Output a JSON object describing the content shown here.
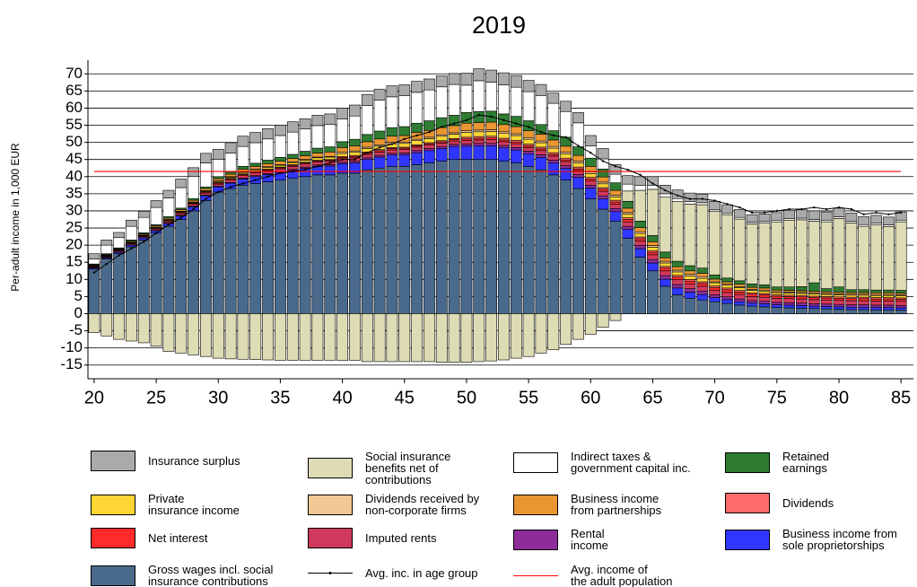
{
  "chart_data": {
    "type": "bar",
    "stacked": true,
    "title": "2019",
    "y_label": "Per-adult income in 1,000 EUR",
    "x": [
      20,
      21,
      22,
      23,
      24,
      25,
      26,
      27,
      28,
      29,
      30,
      31,
      32,
      33,
      34,
      35,
      36,
      37,
      38,
      39,
      40,
      41,
      42,
      43,
      44,
      45,
      46,
      47,
      48,
      49,
      50,
      51,
      52,
      53,
      54,
      55,
      56,
      57,
      58,
      59,
      60,
      61,
      62,
      63,
      64,
      65,
      66,
      67,
      68,
      69,
      70,
      71,
      72,
      73,
      74,
      75,
      76,
      77,
      78,
      79,
      80,
      81,
      82,
      83,
      84,
      85
    ],
    "xlim": [
      19.5,
      86
    ],
    "xticks": [
      20,
      25,
      30,
      35,
      40,
      45,
      50,
      55,
      60,
      65,
      70,
      75,
      80,
      85
    ],
    "ylim": [
      -19,
      74
    ],
    "yticks": [
      -15,
      -10,
      -5,
      0,
      5,
      10,
      15,
      20,
      25,
      30,
      35,
      40,
      45,
      50,
      55,
      60,
      65,
      70
    ],
    "grid": true,
    "series": [
      {
        "name": "Gross wages incl. social\ninsurance contributions",
        "color": "#4a6a8c",
        "values": [
          13,
          16,
          17.5,
          19.5,
          21.5,
          23.5,
          25.5,
          27.5,
          30,
          33,
          35.5,
          36.5,
          37.5,
          38,
          38.5,
          39,
          39.5,
          40,
          40.5,
          40.5,
          41,
          41,
          42,
          42.5,
          43,
          43,
          43.5,
          44,
          44.5,
          45,
          45,
          45,
          45,
          44.5,
          44,
          43,
          42,
          40.5,
          39,
          36.5,
          33.5,
          30.5,
          27,
          22,
          16.5,
          12.5,
          8,
          5.5,
          4.5,
          4,
          3.5,
          3,
          2.5,
          2.2,
          2,
          1.8,
          1.7,
          1.6,
          1.5,
          1.4,
          1.3,
          1.2,
          1.2,
          1.1,
          1.1,
          1
        ]
      },
      {
        "name": "Business income from\nsole proprietorships",
        "color": "#2f36ff",
        "values": [
          0.3,
          0.3,
          0.4,
          0.5,
          0.6,
          0.7,
          0.8,
          1,
          1.2,
          1.4,
          1.5,
          1.6,
          1.8,
          2,
          2.1,
          2.2,
          2.3,
          2.4,
          2.5,
          2.6,
          2.8,
          3,
          3,
          3.2,
          3.3,
          3.4,
          3.5,
          3.6,
          3.7,
          3.8,
          3.9,
          4,
          4,
          3.9,
          3.8,
          3.7,
          3.6,
          3.5,
          3.4,
          3.3,
          3.2,
          3,
          2.8,
          2.6,
          2.5,
          2.3,
          2.1,
          2,
          1.8,
          1.6,
          1.2,
          1.1,
          1,
          0.9,
          0.9,
          0.8,
          0.8,
          0.8,
          0.7,
          0.7,
          0.7,
          0.7,
          0.7,
          0.7,
          0.7,
          0.7
        ]
      },
      {
        "name": "Rental\nincome",
        "color": "#8e2d9a",
        "values": [
          0.1,
          0.1,
          0.1,
          0.1,
          0.1,
          0.1,
          0.1,
          0.2,
          0.2,
          0.2,
          0.2,
          0.2,
          0.3,
          0.3,
          0.3,
          0.3,
          0.3,
          0.4,
          0.4,
          0.4,
          0.4,
          0.5,
          0.5,
          0.5,
          0.5,
          0.5,
          0.6,
          0.6,
          0.6,
          0.6,
          0.6,
          0.7,
          0.7,
          0.7,
          0.7,
          0.7,
          0.8,
          0.8,
          0.8,
          0.8,
          0.8,
          0.9,
          0.9,
          0.9,
          0.9,
          1,
          1,
          1,
          1,
          1,
          0.8,
          0.8,
          0.8,
          0.7,
          0.7,
          0.7,
          0.7,
          0.7,
          0.7,
          0.7,
          0.7,
          0.7,
          0.7,
          0.7,
          0.7,
          0.7
        ]
      },
      {
        "name": "Imputed rents",
        "color": "#d1395c",
        "values": [
          0.2,
          0.2,
          0.3,
          0.3,
          0.3,
          0.4,
          0.4,
          0.5,
          0.5,
          0.6,
          0.6,
          0.7,
          0.7,
          0.8,
          0.8,
          0.8,
          0.9,
          0.9,
          0.9,
          1,
          1,
          1,
          1,
          1,
          1,
          1,
          1,
          1,
          1,
          1,
          1,
          1,
          1.1,
          1.1,
          1.1,
          1.1,
          1.2,
          1.2,
          1.2,
          1.2,
          1.2,
          1.3,
          1.3,
          1.3,
          1.3,
          1.4,
          1.4,
          1.4,
          1.4,
          1.4,
          1.3,
          1.3,
          1.3,
          1.2,
          1.2,
          1.2,
          1.2,
          1.2,
          1.2,
          1.2,
          1.2,
          1.2,
          1.2,
          1.2,
          1.2,
          1.2
        ]
      },
      {
        "name": "Net interest",
        "color": "#ff2b2b",
        "values": [
          0.2,
          0.2,
          0.2,
          0.2,
          0.2,
          0.2,
          0.3,
          0.3,
          0.3,
          0.3,
          0.3,
          0.3,
          0.3,
          0.3,
          0.3,
          0.3,
          0.3,
          0.3,
          0.3,
          0.3,
          0.4,
          0.4,
          0.4,
          0.4,
          0.4,
          0.4,
          0.4,
          0.4,
          0.4,
          0.4,
          0.5,
          0.5,
          0.5,
          0.5,
          0.5,
          0.5,
          0.5,
          0.5,
          0.5,
          0.5,
          0.6,
          0.6,
          0.6,
          0.7,
          0.7,
          0.7,
          0.8,
          0.8,
          0.8,
          0.8,
          0.8,
          0.8,
          0.7,
          0.7,
          0.7,
          0.6,
          0.6,
          0.6,
          0.6,
          0.6,
          0.6,
          0.6,
          0.6,
          0.6,
          0.6,
          0.6
        ]
      },
      {
        "name": "Dividends",
        "color": "#ff6b6b",
        "values": [
          0.1,
          0.1,
          0.1,
          0.1,
          0.1,
          0.1,
          0.1,
          0.1,
          0.1,
          0.1,
          0.2,
          0.2,
          0.2,
          0.2,
          0.2,
          0.2,
          0.2,
          0.2,
          0.2,
          0.2,
          0.3,
          0.3,
          0.3,
          0.3,
          0.3,
          0.3,
          0.3,
          0.3,
          0.3,
          0.3,
          0.5,
          0.5,
          0.5,
          0.5,
          0.5,
          0.5,
          0.5,
          0.5,
          0.5,
          0.5,
          0.5,
          0.5,
          0.5,
          0.5,
          0.5,
          0.5,
          0.5,
          0.5,
          0.5,
          0.5,
          0.5,
          0.5,
          0.5,
          0.4,
          0.4,
          0.4,
          0.4,
          0.4,
          0.4,
          0.4,
          0.4,
          0.4,
          0.4,
          0.4,
          0.4,
          0.4
        ]
      },
      {
        "name": "Private\ninsurance income",
        "color": "#ffd633",
        "values": [
          0.1,
          0.1,
          0.1,
          0.1,
          0.1,
          0.2,
          0.2,
          0.2,
          0.2,
          0.2,
          0.3,
          0.3,
          0.4,
          0.4,
          0.5,
          0.5,
          0.6,
          0.6,
          0.7,
          0.7,
          0.8,
          0.9,
          1,
          1,
          1.1,
          1.1,
          1.2,
          1.2,
          1.3,
          1.3,
          1.4,
          1.4,
          1.4,
          1.4,
          1.4,
          1.4,
          1.3,
          1.3,
          1.2,
          1.2,
          1.1,
          1.1,
          1,
          1,
          1,
          1,
          1,
          1,
          1,
          1,
          0.9,
          0.8,
          0.8,
          0.7,
          0.7,
          0.6,
          0.6,
          0.6,
          0.6,
          0.6,
          0.6,
          0.6,
          0.6,
          0.6,
          0.6,
          0.6
        ]
      },
      {
        "name": "Dividends received by\nnon-corporate firms",
        "color": "#f4c894",
        "values": [
          0.1,
          0.1,
          0.1,
          0.1,
          0.1,
          0.1,
          0.1,
          0.1,
          0.1,
          0.1,
          0.2,
          0.2,
          0.2,
          0.2,
          0.2,
          0.2,
          0.2,
          0.2,
          0.2,
          0.2,
          0.4,
          0.4,
          0.4,
          0.4,
          0.4,
          0.4,
          0.4,
          0.4,
          0.4,
          0.4,
          0.5,
          0.5,
          0.5,
          0.5,
          0.5,
          0.5,
          0.5,
          0.5,
          0.5,
          0.5,
          0.5,
          0.5,
          0.5,
          0.5,
          0.5,
          0.5,
          0.5,
          0.5,
          0.5,
          0.5,
          0.3,
          0.3,
          0.3,
          0.3,
          0.3,
          0.3,
          0.3,
          0.3,
          0.3,
          0.3,
          0.3,
          0.3,
          0.3,
          0.3,
          0.3,
          0.3
        ]
      },
      {
        "name": "Business income\nfrom partnerships",
        "color": "#ea9630",
        "values": [
          0.2,
          0.2,
          0.2,
          0.3,
          0.3,
          0.4,
          0.4,
          0.5,
          0.5,
          0.6,
          0.6,
          0.7,
          0.8,
          0.8,
          0.9,
          1,
          1,
          1.1,
          1.2,
          1.3,
          1.4,
          1.5,
          1.6,
          1.7,
          1.8,
          1.9,
          2,
          2,
          2.1,
          2.1,
          2.2,
          2.2,
          2.2,
          2.1,
          2.1,
          2,
          2,
          1.9,
          1.8,
          1.7,
          1.6,
          1.5,
          1.4,
          1.3,
          1.2,
          1.1,
          1,
          1,
          1,
          1,
          0.8,
          0.7,
          0.7,
          0.6,
          0.6,
          0.5,
          0.5,
          0.5,
          0.5,
          0.5,
          0.5,
          0.5,
          0.5,
          0.5,
          0.5,
          0.5
        ]
      },
      {
        "name": "Retained\nearnings",
        "color": "#2e7d32",
        "values": [
          0.2,
          0.2,
          0.2,
          0.3,
          0.3,
          0.3,
          0.4,
          0.4,
          0.5,
          0.5,
          0.6,
          0.7,
          0.8,
          0.9,
          1,
          1.1,
          1.2,
          1.3,
          1.4,
          1.5,
          1.7,
          1.9,
          2.1,
          2.3,
          2.5,
          2.6,
          2.7,
          2.8,
          2.9,
          3,
          3.1,
          3.2,
          3.2,
          3.1,
          3,
          2.9,
          2.8,
          2.7,
          2.6,
          2.5,
          2.4,
          2.3,
          2.2,
          2,
          1.9,
          1.8,
          1.7,
          1.6,
          1.5,
          1.5,
          1.2,
          1.1,
          1,
          1,
          0.9,
          0.9,
          1,
          1.2,
          2.5,
          0.9,
          1.5,
          0.8,
          0.8,
          0.8,
          0.8,
          0.8
        ]
      },
      {
        "name": "Social insurance\nbenefits net of\ncontributions",
        "color": "#dedcb4",
        "values": [
          -5.5,
          -6.5,
          -7.5,
          -8,
          -8.5,
          -9.5,
          -11,
          -11.5,
          -12,
          -12.5,
          -13,
          -13.2,
          -13.3,
          -13.4,
          -13.5,
          -13.6,
          -13.6,
          -13.6,
          -13.6,
          -13.6,
          -13.7,
          -13.6,
          -14,
          -14,
          -14,
          -14,
          -14,
          -14,
          -14.2,
          -14.2,
          -14.2,
          -14,
          -13.8,
          -13.5,
          -13,
          -12.5,
          -11.5,
          -10.5,
          -9,
          -7.5,
          -6,
          -4,
          -2,
          3,
          9,
          13.5,
          16,
          17.5,
          18,
          18.5,
          18.5,
          18.5,
          18,
          17.5,
          18,
          19,
          19.5,
          19.5,
          18,
          19.5,
          20,
          19.5,
          18.5,
          19,
          18.5,
          20
        ]
      },
      {
        "name": "Indirect taxes &\ngovernment capital inc.",
        "color": "#ffffff",
        "values": [
          1.5,
          2.5,
          3,
          4,
          4.5,
          5,
          5.5,
          6,
          6.5,
          7,
          5,
          5.5,
          5.8,
          6,
          6.2,
          6.4,
          6.5,
          6.5,
          6.6,
          6.6,
          6.6,
          6.8,
          8.5,
          9,
          9,
          9,
          9,
          9,
          9,
          9,
          8,
          9,
          8.5,
          8.5,
          8.5,
          8.5,
          8.5,
          8,
          7.5,
          7,
          3.6,
          3,
          2.5,
          2,
          1.5,
          1.2,
          1,
          0.8,
          0.7,
          0.6,
          0.5,
          0.5,
          0.5,
          0.5,
          0.5,
          0.5,
          0.5,
          0.5,
          0.5,
          0.5,
          0.5,
          0.5,
          0.5,
          0.5,
          0.5,
          0.5
        ]
      },
      {
        "name": "Insurance surplus",
        "color": "#aaaaaa",
        "values": [
          1.5,
          1.5,
          1.5,
          1.8,
          1.8,
          2,
          2.2,
          2.5,
          2.5,
          2.8,
          3,
          3,
          3,
          3,
          3,
          3,
          3,
          3,
          3,
          3,
          3.2,
          3.2,
          3.2,
          3.2,
          3.2,
          3.2,
          3.2,
          3.2,
          3.2,
          3.2,
          3.5,
          3.5,
          3.5,
          3.5,
          3.4,
          3.3,
          3.2,
          3,
          3,
          3,
          3,
          3,
          2.8,
          2.5,
          2.5,
          2.5,
          2.5,
          2.5,
          2.5,
          2.5,
          2.5,
          2.4,
          2.3,
          2.2,
          2.2,
          2.2,
          2.3,
          2.4,
          2.5,
          2.4,
          2.5,
          2.4,
          2.3,
          2.3,
          2.3,
          2.4
        ]
      }
    ],
    "lines": [
      {
        "name": "Avg. inc. in age group",
        "color": "#000000",
        "values": [
          12,
          14.5,
          17,
          19,
          21,
          23.5,
          26,
          28,
          30.5,
          33.5,
          35.5,
          37,
          38,
          39,
          40,
          41,
          41.5,
          42,
          43,
          44,
          45,
          45,
          47,
          48.5,
          49.5,
          51,
          52,
          53,
          54.5,
          55.5,
          56.5,
          58,
          57.5,
          56.5,
          55.5,
          54.5,
          53,
          52,
          51.5,
          49,
          47,
          44.5,
          43,
          42,
          40.5,
          38,
          36,
          34.5,
          33.5,
          33.5,
          33,
          32,
          31,
          29.5,
          29.5,
          30,
          30.5,
          30.5,
          31,
          30.5,
          31,
          30.5,
          29,
          29.5,
          29,
          29.5
        ]
      }
    ],
    "hlines": [
      {
        "name": "Avg. income of\nthe adult population",
        "color": "#ff0000",
        "value": 41.5
      }
    ]
  }
}
